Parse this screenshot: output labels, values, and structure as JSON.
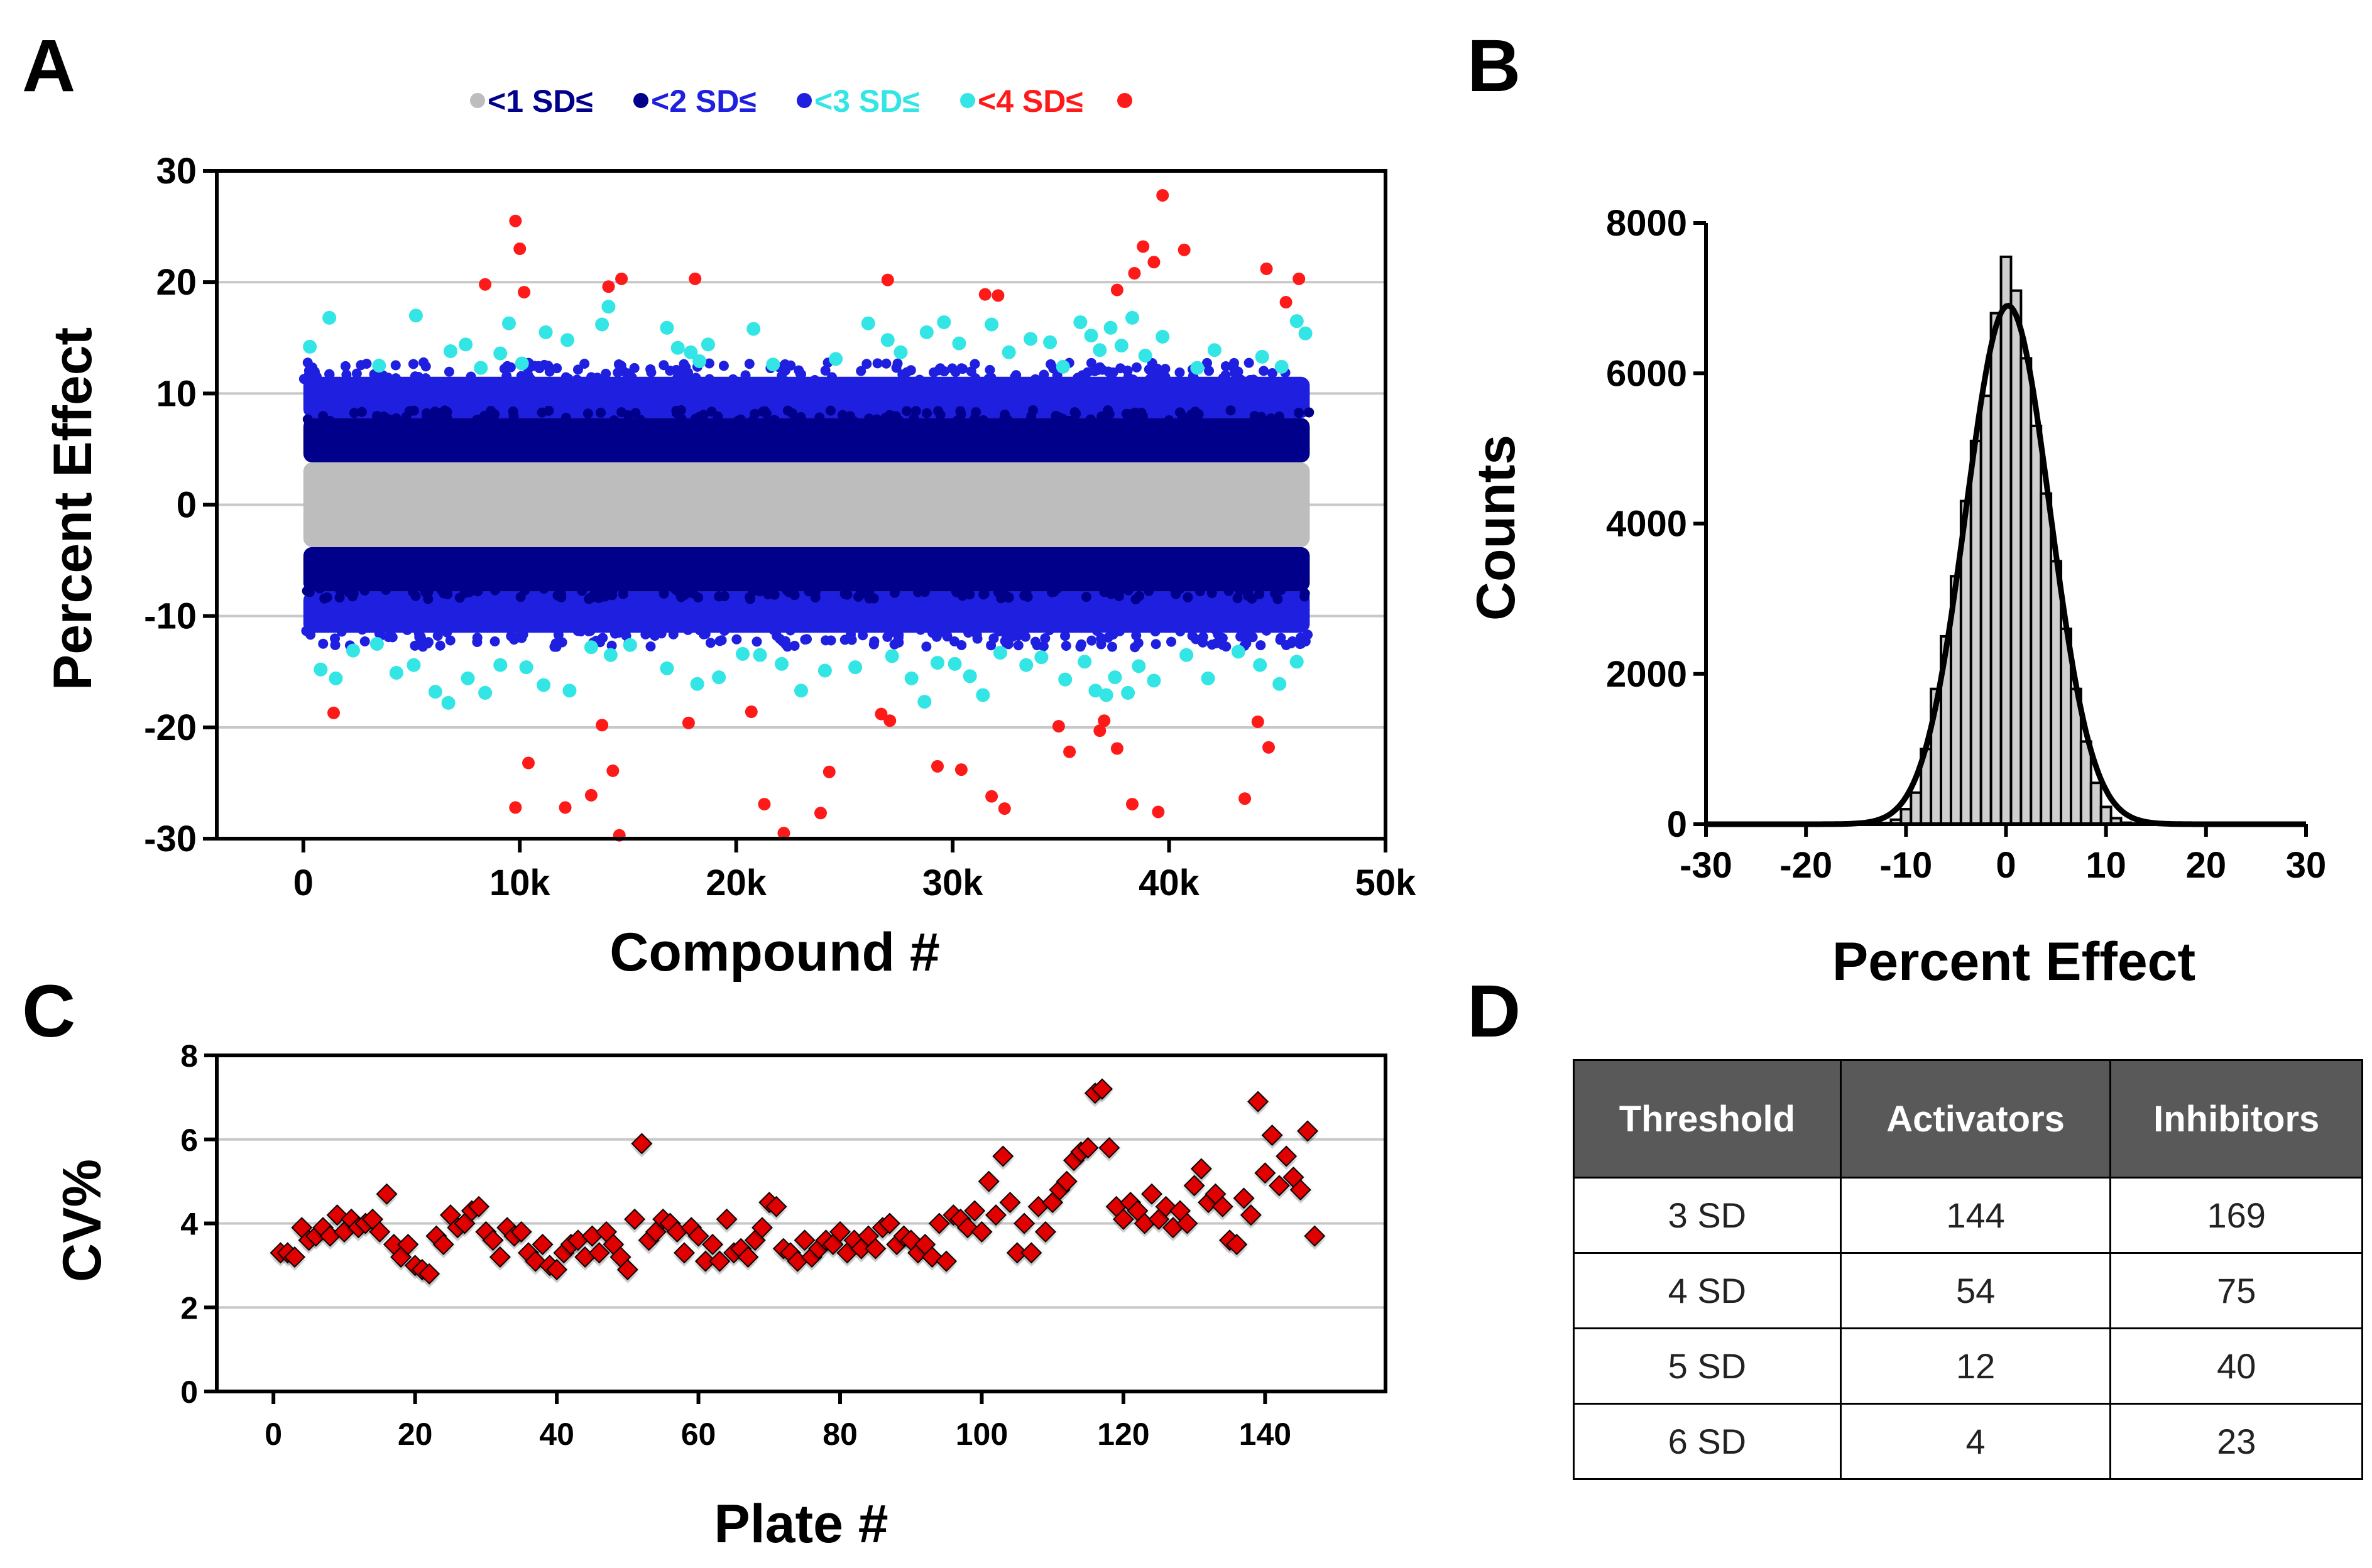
{
  "panels": {
    "a": "A",
    "b": "B",
    "c": "C",
    "d": "D"
  },
  "colors": {
    "grey": "#bdbdbd",
    "navy": "#00008b",
    "blue": "#1f1fe0",
    "cyan": "#33e5e5",
    "red": "#ff1a1a",
    "bar_fill": "#cfcfcf",
    "table_header_bg": "#595959",
    "red_marker": "#e00000"
  },
  "legend": {
    "items": [
      {
        "symbol_color": "#bdbdbd",
        "label": "<1 SD≤",
        "label_color": "#00008b"
      },
      {
        "symbol_color": "#00008b",
        "label": "<2 SD≤",
        "label_color": "#1f1fe0"
      },
      {
        "symbol_color": "#1f1fe0",
        "label": "<3 SD≤",
        "label_color": "#33e5e5"
      },
      {
        "symbol_color": "#33e5e5",
        "label": "<4 SD≤",
        "label_color": "#ff1a1a"
      },
      {
        "symbol_color": "#ff1a1a",
        "label": ""
      }
    ]
  },
  "chart_data": [
    {
      "id": "A",
      "type": "scatter",
      "title": "",
      "xlabel": "Compound #",
      "ylabel": "Percent Effect",
      "xlim": [
        -4000,
        50000
      ],
      "ylim": [
        -30,
        30
      ],
      "xticks": [
        0,
        10000,
        20000,
        30000,
        40000,
        50000
      ],
      "xtick_labels": [
        "0",
        "10k",
        "20k",
        "30k",
        "40k",
        "50k"
      ],
      "yticks": [
        -30,
        -20,
        -10,
        0,
        10,
        20,
        30
      ],
      "ytick_labels": [
        "-30",
        "-20",
        "-10",
        "0",
        "10",
        "20",
        "30"
      ],
      "grid": "horizontal",
      "bands": [
        {
          "name": "<1 SD (grey)",
          "x_range": [
            0,
            46500
          ],
          "y_range": [
            -3.8,
            3.8
          ]
        },
        {
          "name": "1-2 SD (navy)",
          "x_range": [
            0,
            46500
          ],
          "y_ranges": [
            [
              3.8,
              7.8
            ],
            [
              -7.8,
              -3.8
            ]
          ]
        },
        {
          "name": "2-3 SD (blue)",
          "x_range": [
            0,
            46500
          ],
          "y_ranges": [
            [
              7.8,
              11.5
            ],
            [
              -11.5,
              -7.8
            ]
          ]
        }
      ],
      "series": [
        {
          "name": "3-4 SD (cyan)",
          "points": [
            [
              300,
              14.2
            ],
            [
              1200,
              16.8
            ],
            [
              3500,
              12.5
            ],
            [
              5200,
              17
            ],
            [
              6800,
              13.8
            ],
            [
              7500,
              14.4
            ],
            [
              8200,
              12.3
            ],
            [
              9100,
              13.6
            ],
            [
              9500,
              16.3
            ],
            [
              10100,
              12.7
            ],
            [
              11200,
              15.5
            ],
            [
              12200,
              14.8
            ],
            [
              13800,
              16.2
            ],
            [
              14100,
              17.8
            ],
            [
              16800,
              15.9
            ],
            [
              17300,
              14.1
            ],
            [
              17900,
              13.7
            ],
            [
              18300,
              12.9
            ],
            [
              18700,
              14.4
            ],
            [
              20800,
              15.8
            ],
            [
              21700,
              12.6
            ],
            [
              24600,
              13.1
            ],
            [
              26100,
              16.3
            ],
            [
              27000,
              14.8
            ],
            [
              27600,
              13.7
            ],
            [
              28800,
              15.5
            ],
            [
              29600,
              16.4
            ],
            [
              30300,
              14.5
            ],
            [
              31800,
              16.2
            ],
            [
              32600,
              13.7
            ],
            [
              33600,
              14.9
            ],
            [
              34500,
              14.6
            ],
            [
              35100,
              12.4
            ],
            [
              35900,
              16.4
            ],
            [
              36400,
              15.2
            ],
            [
              36800,
              13.9
            ],
            [
              37300,
              15.9
            ],
            [
              37800,
              14.3
            ],
            [
              38300,
              16.8
            ],
            [
              38900,
              13.4
            ],
            [
              39700,
              15.1
            ],
            [
              41300,
              12.3
            ],
            [
              42100,
              13.9
            ],
            [
              44300,
              13.3
            ],
            [
              45200,
              12.4
            ],
            [
              45900,
              16.5
            ],
            [
              46300,
              15.4
            ],
            [
              800,
              -14.8
            ],
            [
              1500,
              -15.6
            ],
            [
              2300,
              -13.1
            ],
            [
              3400,
              -12.5
            ],
            [
              4300,
              -15.1
            ],
            [
              5100,
              -14.4
            ],
            [
              6100,
              -16.8
            ],
            [
              6700,
              -17.8
            ],
            [
              7600,
              -15.6
            ],
            [
              8400,
              -16.9
            ],
            [
              9100,
              -14.4
            ],
            [
              10300,
              -14.6
            ],
            [
              11100,
              -16.2
            ],
            [
              12300,
              -16.7
            ],
            [
              13300,
              -12.8
            ],
            [
              14200,
              -13.5
            ],
            [
              15100,
              -12.6
            ],
            [
              16800,
              -14.7
            ],
            [
              18200,
              -16.1
            ],
            [
              19200,
              -15.5
            ],
            [
              20300,
              -13.4
            ],
            [
              21100,
              -13.5
            ],
            [
              22100,
              -14.3
            ],
            [
              23000,
              -16.7
            ],
            [
              24100,
              -14.9
            ],
            [
              25500,
              -14.6
            ],
            [
              27200,
              -13.6
            ],
            [
              28100,
              -15.6
            ],
            [
              28700,
              -17.7
            ],
            [
              29300,
              -14.2
            ],
            [
              30100,
              -14.3
            ],
            [
              30800,
              -15.4
            ],
            [
              31400,
              -17.1
            ],
            [
              32200,
              -13.3
            ],
            [
              33400,
              -14.4
            ],
            [
              34100,
              -13.7
            ],
            [
              35200,
              -15.7
            ],
            [
              36100,
              -14.1
            ],
            [
              36600,
              -16.7
            ],
            [
              37100,
              -17.1
            ],
            [
              37500,
              -15.5
            ],
            [
              38100,
              -16.9
            ],
            [
              38600,
              -14.5
            ],
            [
              39300,
              -15.8
            ],
            [
              40800,
              -13.5
            ],
            [
              41800,
              -15.6
            ],
            [
              43200,
              -13.2
            ],
            [
              44200,
              -14.4
            ],
            [
              45100,
              -16.1
            ],
            [
              45900,
              -14.1
            ]
          ]
        },
        {
          "name": ">=4 SD (red)",
          "points": [
            [
              9800,
              25.5
            ],
            [
              10000,
              23
            ],
            [
              8400,
              19.8
            ],
            [
              10200,
              19.1
            ],
            [
              14100,
              19.6
            ],
            [
              14700,
              20.3
            ],
            [
              18100,
              20.3
            ],
            [
              27000,
              20.2
            ],
            [
              31500,
              18.9
            ],
            [
              32100,
              18.8
            ],
            [
              37600,
              19.3
            ],
            [
              38400,
              20.8
            ],
            [
              38800,
              23.2
            ],
            [
              39300,
              21.8
            ],
            [
              39700,
              27.8
            ],
            [
              40700,
              22.9
            ],
            [
              44500,
              21.2
            ],
            [
              45400,
              18.2
            ],
            [
              46000,
              20.3
            ],
            [
              1400,
              -18.7
            ],
            [
              9800,
              -27.2
            ],
            [
              10400,
              -23.2
            ],
            [
              12100,
              -27.2
            ],
            [
              13300,
              -26.1
            ],
            [
              13800,
              -19.8
            ],
            [
              14300,
              -23.9
            ],
            [
              14600,
              -29.7
            ],
            [
              17800,
              -19.6
            ],
            [
              20700,
              -18.6
            ],
            [
              21300,
              -26.9
            ],
            [
              22200,
              -29.5
            ],
            [
              23900,
              -27.7
            ],
            [
              24300,
              -24
            ],
            [
              26700,
              -18.8
            ],
            [
              27100,
              -19.4
            ],
            [
              29300,
              -23.5
            ],
            [
              30400,
              -23.8
            ],
            [
              31800,
              -26.2
            ],
            [
              32400,
              -27.3
            ],
            [
              34900,
              -19.9
            ],
            [
              35400,
              -22.2
            ],
            [
              36800,
              -20.3
            ],
            [
              37000,
              -19.4
            ],
            [
              37600,
              -21.9
            ],
            [
              38300,
              -26.9
            ],
            [
              39500,
              -27.6
            ],
            [
              43500,
              -26.4
            ],
            [
              44100,
              -19.5
            ],
            [
              44600,
              -21.8
            ]
          ]
        }
      ]
    },
    {
      "id": "B",
      "type": "bar",
      "subtype": "histogram with gaussian fit",
      "title": "",
      "xlabel": "Percent Effect",
      "ylabel": "Counts",
      "xlim": [
        -30,
        30
      ],
      "ylim": [
        0,
        8000
      ],
      "xticks": [
        -30,
        -20,
        -10,
        0,
        10,
        20,
        30
      ],
      "yticks": [
        0,
        2000,
        4000,
        6000,
        8000
      ],
      "bin_width": 1,
      "bins": [
        -12,
        -11,
        -10,
        -9,
        -8,
        -7,
        -6,
        -5,
        -4,
        -3,
        -2,
        -1,
        0,
        1,
        2,
        3,
        4,
        5,
        6,
        7,
        8,
        9,
        10,
        11,
        12
      ],
      "values": [
        15,
        60,
        200,
        420,
        1000,
        1800,
        2500,
        3300,
        4300,
        5100,
        5700,
        6800,
        7550,
        7100,
        6200,
        5300,
        4400,
        3500,
        2600,
        1800,
        1100,
        550,
        230,
        80,
        20
      ],
      "fit": {
        "type": "gaussian",
        "mean": 0.2,
        "sd": 4.2,
        "peak": 6900
      }
    },
    {
      "id": "C",
      "type": "scatter",
      "title": "",
      "xlabel": "Plate #",
      "ylabel": "CV%",
      "xlim": [
        -8,
        157
      ],
      "ylim": [
        0,
        8
      ],
      "xticks": [
        0,
        20,
        40,
        60,
        80,
        100,
        120,
        140
      ],
      "yticks": [
        0,
        2,
        4,
        6,
        8
      ],
      "grid": "horizontal",
      "values": [
        3.3,
        3.3,
        3.2,
        3.9,
        3.6,
        3.7,
        3.9,
        3.7,
        4.2,
        3.8,
        4.1,
        3.9,
        4,
        4.1,
        3.8,
        4.7,
        3.5,
        3.2,
        3.5,
        3,
        2.9,
        2.8,
        3.7,
        3.5,
        4.2,
        3.9,
        4,
        4.3,
        4.4,
        3.8,
        3.6,
        3.2,
        3.9,
        3.7,
        3.8,
        3.3,
        3.1,
        3.5,
        3,
        2.9,
        3.3,
        3.5,
        3.6,
        3.2,
        3.7,
        3.3,
        3.8,
        3.5,
        3.2,
        2.9,
        4.1,
        5.9,
        3.6,
        3.8,
        4.1,
        4,
        3.8,
        3.3,
        3.9,
        3.7,
        3.1,
        3.5,
        3.1,
        4.1,
        3.3,
        3.4,
        3.2,
        3.6,
        3.9,
        4.5,
        4.4,
        3.4,
        3.3,
        3.1,
        3.6,
        3.2,
        3.4,
        3.6,
        3.5,
        3.8,
        3.3,
        3.6,
        3.4,
        3.7,
        3.4,
        3.9,
        4,
        3.5,
        3.7,
        3.6,
        3.3,
        3.5,
        3.2,
        4,
        3.1,
        4.2,
        4.1,
        3.9,
        4.3,
        3.8,
        5,
        4.2,
        5.6,
        4.5,
        3.3,
        4,
        3.3,
        4.4,
        3.8,
        4.5,
        4.8,
        5,
        5.5,
        5.7,
        5.8,
        7.1,
        7.2,
        5.8,
        4.4,
        4.1,
        4.5,
        4.3,
        4,
        4.7,
        4.1,
        4.4,
        3.9,
        4.3,
        4,
        4.9,
        5.3,
        4.5,
        4.7,
        4.4,
        3.6,
        3.5,
        4.6,
        4.2,
        6.9,
        5.2,
        6.1,
        4.9,
        5.6,
        5.1,
        4.8,
        6.2,
        3.7
      ]
    },
    {
      "id": "D",
      "type": "table",
      "columns": [
        "Threshold",
        "Activators",
        "Inhibitors"
      ],
      "rows": [
        [
          "3 SD",
          "144",
          "169"
        ],
        [
          "4 SD",
          "54",
          "75"
        ],
        [
          "5 SD",
          "12",
          "40"
        ],
        [
          "6 SD",
          "4",
          "23"
        ]
      ]
    }
  ]
}
